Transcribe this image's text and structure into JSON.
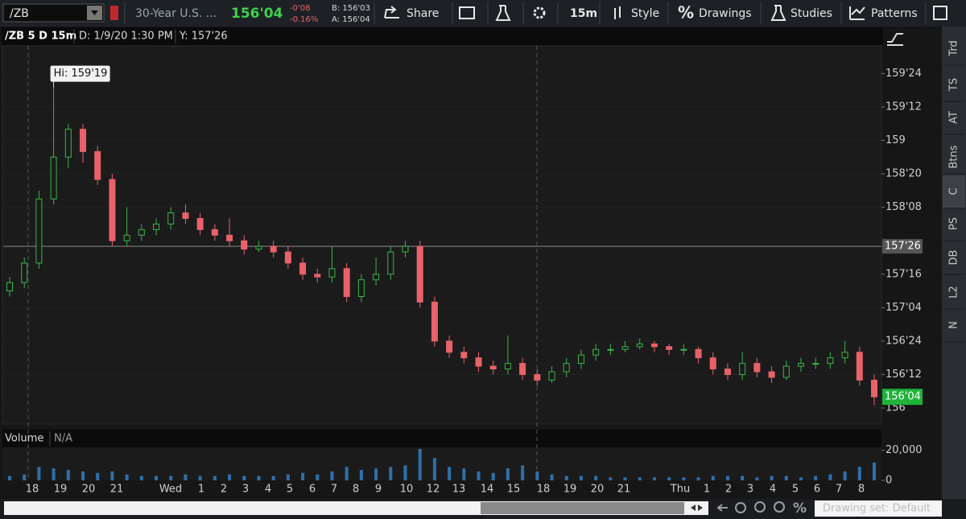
{
  "toolbar": {
    "symbol": "/ZB",
    "description": "30-Year U.S. ...",
    "last": "156'04",
    "change": "-0'08",
    "change_pct": "-0.16%",
    "bid": "B: 156'03",
    "ask": "A: 156'04",
    "share": "Share",
    "aggregation": "15m",
    "style": "Style",
    "drawings_icon": "%",
    "drawings": "Drawings",
    "studies": "Studies",
    "patterns": "Patterns"
  },
  "chart_header": {
    "symbol": "/ZB 5 D 15m",
    "date": "D: 1/9/20 1:30 PM",
    "y": "Y: 157'26"
  },
  "sidebar": [
    "Trd",
    "TS",
    "AT",
    "Btns",
    "C",
    "PS",
    "DB",
    "L2",
    "N"
  ],
  "footer": {
    "zoom_icon": "%",
    "drawing_set": "Drawing set: Default"
  },
  "chart_data": [
    {
      "type": "candlestick",
      "up_color": "#3cb44a",
      "down_color": "#e8626a",
      "ylim": [
        155.82,
        160.06
      ],
      "yticks": [
        {
          "value": 156,
          "label": "156"
        },
        {
          "value": 156.375,
          "label": "156'12"
        },
        {
          "value": 156.75,
          "label": "156'24"
        },
        {
          "value": 157.125,
          "label": "157'04"
        },
        {
          "value": 157.5,
          "label": "157'16"
        },
        {
          "value": 158.25,
          "label": "158'08"
        },
        {
          "value": 158.625,
          "label": "158'20"
        },
        {
          "value": 159,
          "label": "159"
        },
        {
          "value": 159.375,
          "label": "159'12"
        },
        {
          "value": 159.75,
          "label": "159'24"
        }
      ],
      "time_labels": [
        "18",
        "19",
        "20",
        "21",
        "Wed",
        "1",
        "2",
        "3",
        "4",
        "5",
        "6",
        "7",
        "8",
        "9",
        "10",
        "12",
        "13",
        "14",
        "15",
        "18",
        "19",
        "20",
        "21",
        "Thu",
        "1",
        "2",
        "3",
        "4",
        "5",
        "6",
        "7",
        "8"
      ],
      "crosshair": {
        "value": 157.8125,
        "label": "157'26"
      },
      "last_price": {
        "value": 156.125,
        "label": "156'04"
      },
      "high_marker": {
        "value": 159.59375,
        "label": "Hi: 159'19"
      },
      "open": [
        157.3125,
        157.40625,
        157.625,
        158.34375,
        158.8125,
        159.125,
        158.875,
        158.5625,
        157.875,
        157.9375,
        158,
        158.0625,
        158.1875,
        158.125,
        158,
        157.9375,
        157.875,
        157.78125,
        157.8125,
        157.75,
        157.625,
        157.5,
        157.46875,
        157.5625,
        157.25,
        157.4375,
        157.5,
        157.75,
        157.8125,
        157.1875,
        156.75,
        156.625,
        156.5625,
        156.46875,
        156.4375,
        156.5,
        156.375,
        156.3125,
        156.40625,
        156.5,
        156.59375,
        156.65625,
        156.65625,
        156.6875,
        156.71875,
        156.6875,
        156.65625,
        156.65625,
        156.5625,
        156.4375,
        156.375,
        156.5,
        156.40625,
        156.34375,
        156.46875,
        156.5,
        156.5,
        156.5625,
        156.625,
        156.3125
      ],
      "close": [
        157.40625,
        157.625,
        158.34375,
        158.8125,
        159.125,
        158.875,
        158.5625,
        157.875,
        157.9375,
        158,
        158.0625,
        158.1875,
        158.125,
        158,
        157.9375,
        157.875,
        157.78125,
        157.8125,
        157.75,
        157.625,
        157.5,
        157.46875,
        157.5625,
        157.25,
        157.4375,
        157.5,
        157.75,
        157.8125,
        157.1875,
        156.75,
        156.625,
        156.5625,
        156.46875,
        156.4375,
        156.5,
        156.375,
        156.3125,
        156.40625,
        156.5,
        156.59375,
        156.65625,
        156.65625,
        156.6875,
        156.71875,
        156.6875,
        156.65625,
        156.65625,
        156.5625,
        156.4375,
        156.375,
        156.5,
        156.40625,
        156.34375,
        156.46875,
        156.5,
        156.5,
        156.5625,
        156.625,
        156.3125,
        156.125
      ],
      "high": [
        157.46875,
        157.6875,
        158.4375,
        159.59375,
        159.1875,
        159.1875,
        158.9375,
        158.625,
        158.25,
        158.0625,
        158.125,
        158.25,
        158.28125,
        158.1875,
        158.0625,
        158.125,
        157.9375,
        157.875,
        157.875,
        157.8125,
        157.6875,
        157.5625,
        157.8125,
        157.625,
        157.5,
        157.6875,
        157.8125,
        157.875,
        157.875,
        157.25,
        156.8125,
        156.6875,
        156.625,
        156.53125,
        156.8125,
        156.5625,
        156.4375,
        156.46875,
        156.5625,
        156.65625,
        156.71875,
        156.71875,
        156.75,
        156.78125,
        156.75,
        156.71875,
        156.71875,
        156.6875,
        156.625,
        156.5,
        156.625,
        156.5625,
        156.46875,
        156.53125,
        156.5625,
        156.5625,
        156.625,
        156.75,
        156.6875,
        156.375
      ],
      "low": [
        157.25,
        157.34375,
        157.5625,
        158.28125,
        158.6875,
        158.75,
        158.5,
        157.8125,
        157.8125,
        157.875,
        157.9375,
        158,
        158.0625,
        157.9375,
        157.875,
        157.8125,
        157.71875,
        157.75,
        157.6875,
        157.5625,
        157.4375,
        157.40625,
        157.40625,
        157.1875,
        157.1875,
        157.375,
        157.4375,
        157.6875,
        157.125,
        156.6875,
        156.5625,
        156.5,
        156.40625,
        156.375,
        156.375,
        156.3125,
        156.25,
        156.28125,
        156.34375,
        156.4375,
        156.53125,
        156.59375,
        156.625,
        156.65625,
        156.625,
        156.59375,
        156.59375,
        156.5,
        156.375,
        156.3125,
        156.3125,
        156.34375,
        156.28125,
        156.3125,
        156.40625,
        156.4375,
        156.4375,
        156.5,
        156.25,
        156.03125
      ]
    },
    {
      "type": "bar",
      "title": "Volume",
      "subtitle": "N/A",
      "color": "#2f6fa8",
      "ylim": [
        0,
        22000
      ],
      "yticks": [
        {
          "value": 20000,
          "label": "20,000"
        },
        0
      ],
      "values": [
        3000,
        4000,
        9000,
        8000,
        7000,
        6000,
        5000,
        6000,
        4000,
        3000,
        3000,
        3000,
        4000,
        3000,
        3000,
        4000,
        3000,
        3000,
        3000,
        4000,
        5000,
        4000,
        6000,
        9000,
        7000,
        8000,
        9000,
        10000,
        21000,
        15000,
        9000,
        8000,
        6000,
        5000,
        8000,
        10000,
        6000,
        4000,
        3000,
        3000,
        3000,
        2000,
        2000,
        2000,
        2000,
        2000,
        2000,
        2000,
        3000,
        3000,
        3000,
        2000,
        3000,
        3000,
        2000,
        3000,
        4000,
        6000,
        9000,
        12000
      ]
    }
  ]
}
